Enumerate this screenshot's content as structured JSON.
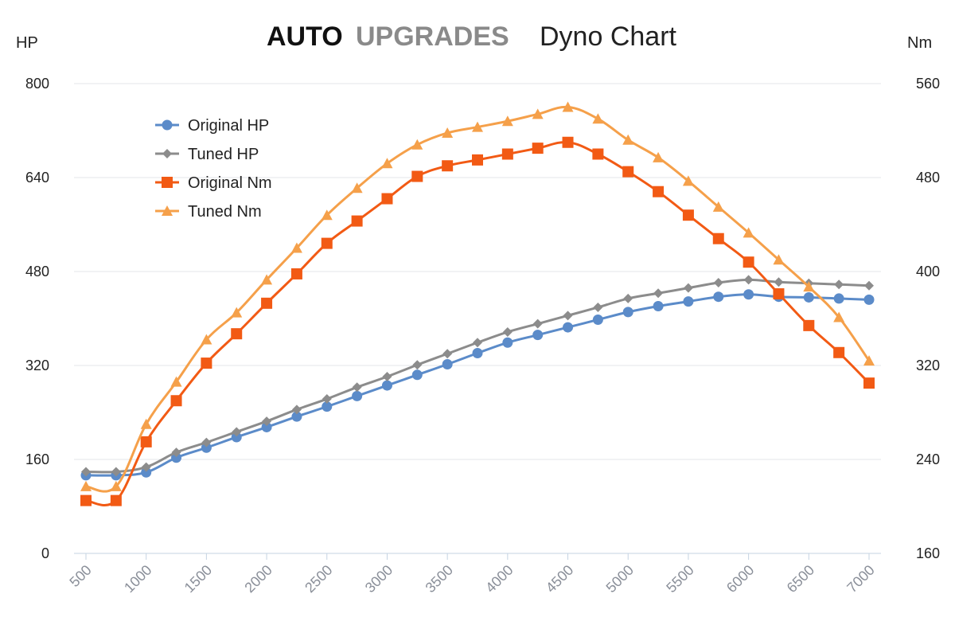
{
  "chart_data": {
    "type": "line",
    "title": {
      "brand_part1": "AUTO",
      "brand_part2": "UPGRADES",
      "text": "Dyno Chart"
    },
    "y_left_label": "HP",
    "y_right_label": "Nm",
    "y_left_range": [
      0,
      800
    ],
    "y_right_range": [
      160,
      560
    ],
    "y_left_ticks": [
      0,
      160,
      320,
      480,
      640,
      800
    ],
    "y_right_ticks": [
      160,
      240,
      320,
      400,
      480,
      560
    ],
    "x_range": [
      500,
      7000
    ],
    "x_ticks": [
      500,
      1000,
      1500,
      2000,
      2500,
      3000,
      3500,
      4000,
      4500,
      5000,
      5500,
      6000,
      6500,
      7000
    ],
    "x": [
      500,
      750,
      1000,
      1250,
      1500,
      1750,
      2000,
      2250,
      2500,
      2750,
      3000,
      3250,
      3500,
      3750,
      4000,
      4250,
      4500,
      4750,
      5000,
      5250,
      5500,
      5750,
      6000,
      6250,
      6500,
      6750,
      7000
    ],
    "grid": true,
    "legend_position": "top-left",
    "series": [
      {
        "name": "Original HP",
        "axis": "left",
        "marker": "circle",
        "color": "#5b8bc9",
        "values": [
          133,
          133,
          138,
          163,
          180,
          198,
          215,
          233,
          250,
          268,
          286,
          304,
          322,
          341,
          359,
          372,
          385,
          398,
          411,
          421,
          429,
          437,
          441,
          437,
          436,
          434,
          432
        ]
      },
      {
        "name": "Tuned HP",
        "axis": "left",
        "marker": "diamond",
        "color": "#8c8c8c",
        "values": [
          139,
          139,
          147,
          172,
          189,
          207,
          225,
          245,
          263,
          283,
          301,
          321,
          340,
          359,
          377,
          391,
          405,
          419,
          434,
          443,
          452,
          461,
          466,
          462,
          460,
          458,
          456
        ]
      },
      {
        "name": "Original Nm",
        "axis": "right",
        "marker": "square",
        "color": "#f25a14",
        "values": [
          205,
          205,
          255,
          290,
          322,
          347,
          373,
          398,
          424,
          443,
          462,
          481,
          490,
          495,
          500,
          505,
          510,
          500,
          485,
          468,
          448,
          428,
          408,
          381,
          354,
          331,
          305
        ]
      },
      {
        "name": "Tuned Nm",
        "axis": "right",
        "marker": "triangle",
        "color": "#f5a04a",
        "values": [
          217,
          217,
          270,
          306,
          342,
          365,
          393,
          420,
          448,
          471,
          492,
          508,
          518,
          523,
          528,
          534,
          540,
          530,
          512,
          497,
          477,
          455,
          433,
          410,
          387,
          361,
          324
        ]
      }
    ]
  }
}
